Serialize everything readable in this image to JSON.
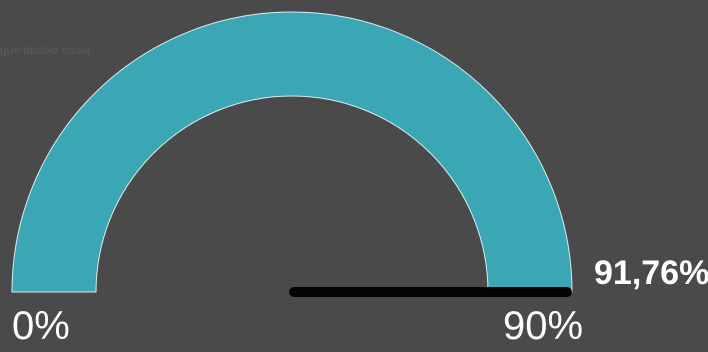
{
  "chart_data": {
    "type": "gauge",
    "min_label": "0%",
    "max_label": "90%",
    "min": 0,
    "max": 90,
    "value": 91.76,
    "value_label": "91,76%",
    "hint_text": "gue abaixo caixa",
    "colors": {
      "background": "#4a4a4a",
      "band": "#3ba6b4",
      "band_outline": "#d7eef1",
      "needle": "#050505",
      "text": "#ffffff"
    }
  }
}
